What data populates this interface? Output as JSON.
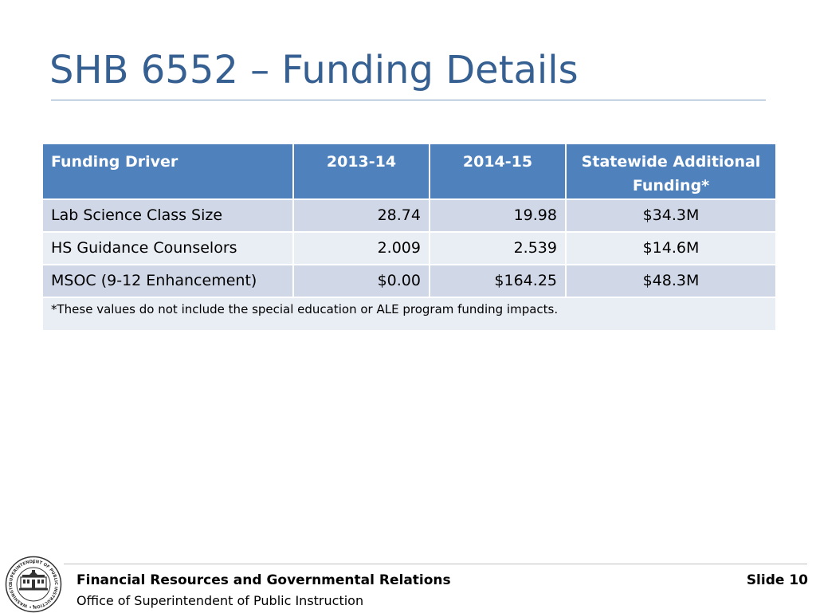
{
  "slide": {
    "title": "SHB 6552 – Funding Details"
  },
  "table": {
    "headers": [
      "Funding Driver",
      "2013-14",
      "2014-15",
      "Statewide Additional Funding*"
    ],
    "rows": [
      [
        "Lab Science Class Size",
        "28.74",
        "19.98",
        "$34.3M"
      ],
      [
        "HS Guidance Counselors",
        "2.009",
        "2.539",
        "$14.6M"
      ],
      [
        "MSOC (9-12 Enhancement)",
        "$0.00",
        "$164.25",
        "$48.3M"
      ]
    ],
    "footnote": "*These values do not include the special education or ALE program funding impacts."
  },
  "footer": {
    "org": "Financial Resources and Governmental Relations",
    "office": "Office of Superintendent of Public Instruction",
    "slide_label": "Slide 10",
    "seal_text": "SUPERINTENDENT OF PUBLIC INSTRUCTION • WASHINGTON •"
  },
  "colors": {
    "title": "#376092",
    "header_bg": "#4f81bd",
    "row_odd": "#d0d8e8",
    "row_even": "#e9edf4"
  },
  "icons": {
    "seal": "state-seal-icon"
  }
}
